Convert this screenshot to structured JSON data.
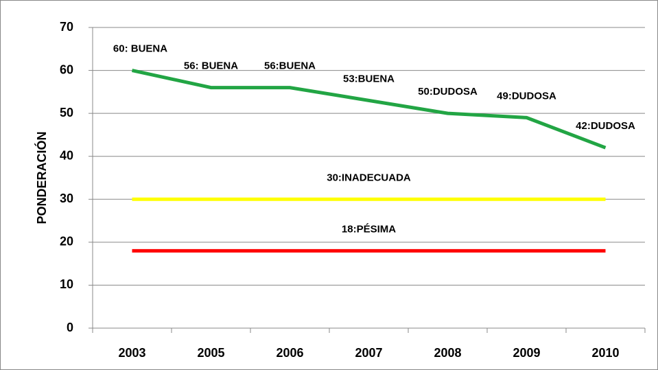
{
  "chart_data": {
    "type": "line",
    "y_label": "PONDERACIÓN",
    "categories": [
      "2003",
      "2005",
      "2006",
      "2007",
      "2008",
      "2009",
      "2010"
    ],
    "series": [
      {
        "color": "#22a544",
        "values": [
          60,
          56,
          56,
          53,
          50,
          49,
          42
        ],
        "value_labels": [
          "60: BUENA",
          "56: BUENA",
          "56:BUENA",
          "53:BUENA",
          "50:DUDOSA",
          "49:DUDOSA",
          "42:DUDOSA"
        ]
      },
      {
        "color": "#ffff00",
        "values": [
          30,
          30,
          30,
          30,
          30,
          30,
          30
        ],
        "value_labels": [
          null,
          null,
          null,
          "30:INADECUADA",
          null,
          null,
          null
        ]
      },
      {
        "color": "#ff0000",
        "values": [
          18,
          18,
          18,
          18,
          18,
          18,
          18
        ],
        "value_labels": [
          null,
          null,
          null,
          "18:PÉSIMA",
          null,
          null,
          null
        ]
      }
    ],
    "ylim": [
      0,
      70
    ],
    "yticks": [
      0,
      10,
      20,
      30,
      40,
      50,
      60,
      70
    ],
    "grid": true
  }
}
